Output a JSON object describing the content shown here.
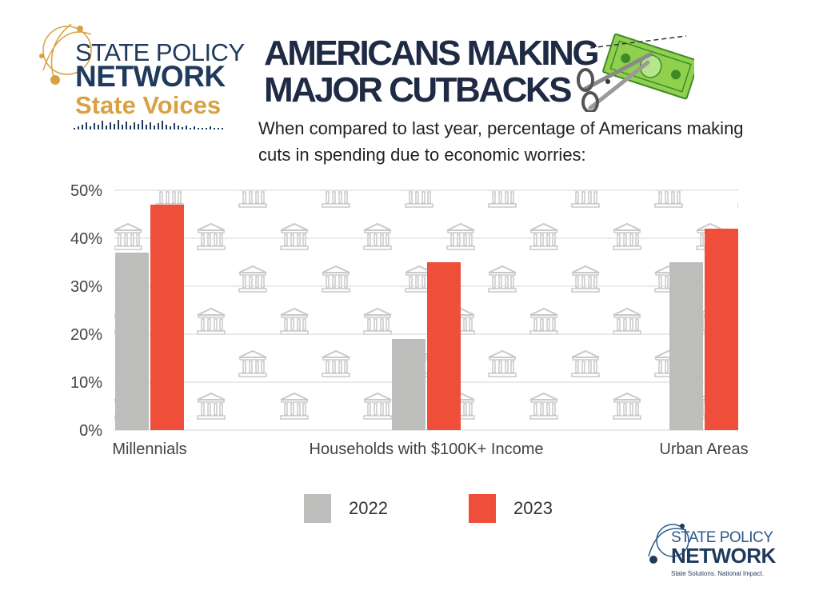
{
  "header": {
    "logo": {
      "line1": "STATE POLICY",
      "line2": "NETWORK",
      "line3": "State Voices"
    },
    "title_line1": "AMERICANS MAKING",
    "title_line2": "MAJOR CUTBACKS",
    "subtitle": "When compared to last year, percentage of Americans making cuts in spending due to economic worries:",
    "money_scissors_icon": "money-scissors-icon"
  },
  "footer": {
    "logo": {
      "line1": "STATE POLICY",
      "line2": "NETWORK",
      "tagline": "State Solutions. National Impact."
    }
  },
  "colors": {
    "navy": "#1f3a5c",
    "gold": "#d9a142",
    "series_2022": "#bdbdbb",
    "series_2023": "#ee4e3a",
    "grid": "#d6d6d6",
    "pattern_icon": "#c9c9c9"
  },
  "background_icon": "bank-building-icon",
  "chart_data": {
    "type": "bar",
    "categories": [
      "Millennials",
      "Households with $100K+ Income",
      "Urban Areas"
    ],
    "series": [
      {
        "name": "2022",
        "values": [
          37,
          19,
          35
        ],
        "color": "#bdbdbb"
      },
      {
        "name": "2023",
        "values": [
          47,
          35,
          42
        ],
        "color": "#ee4e3a"
      }
    ],
    "yticks": [
      "0%",
      "10%",
      "20%",
      "30%",
      "40%",
      "50%"
    ],
    "ylim": [
      0,
      50
    ],
    "grid": true,
    "legend_position": "bottom"
  }
}
